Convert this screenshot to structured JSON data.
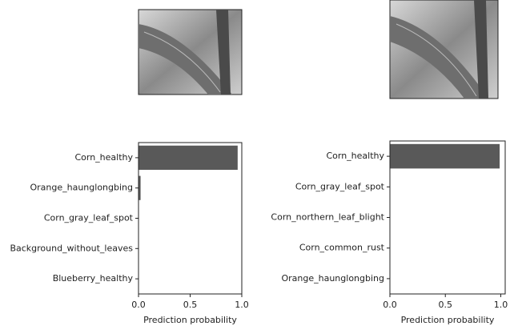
{
  "chart_data": [
    {
      "type": "bar",
      "orientation": "horizontal",
      "categories": [
        "Corn_healthy",
        "Orange_haunglongbing",
        "Corn_gray_leaf_spot",
        "Background_without_leaves",
        "Blueberry_healthy"
      ],
      "values": [
        0.96,
        0.02,
        0,
        0,
        0
      ],
      "color": "#595959",
      "xlim": [
        0,
        1.0
      ],
      "xticks": [
        {
          "value": 0,
          "label": "0.0"
        },
        0.5,
        {
          "value": 1,
          "label": "1.0"
        }
      ],
      "xlabel": "Prediction probability"
    },
    {
      "type": "bar",
      "orientation": "horizontal",
      "categories": [
        "Corn_healthy",
        "Corn_gray_leaf_spot",
        "Corn_northern_leaf_blight",
        "Corn_common_rust",
        "Orange_haunglongbing"
      ],
      "values": [
        0.99,
        0,
        0,
        0,
        0
      ],
      "color": "#595959",
      "xlim": [
        0,
        1.04
      ],
      "xticks": [
        {
          "value": 0,
          "label": "0.0"
        },
        0.5,
        {
          "value": 1,
          "label": "1.0"
        }
      ],
      "xlabel": "Prediction probability"
    }
  ]
}
